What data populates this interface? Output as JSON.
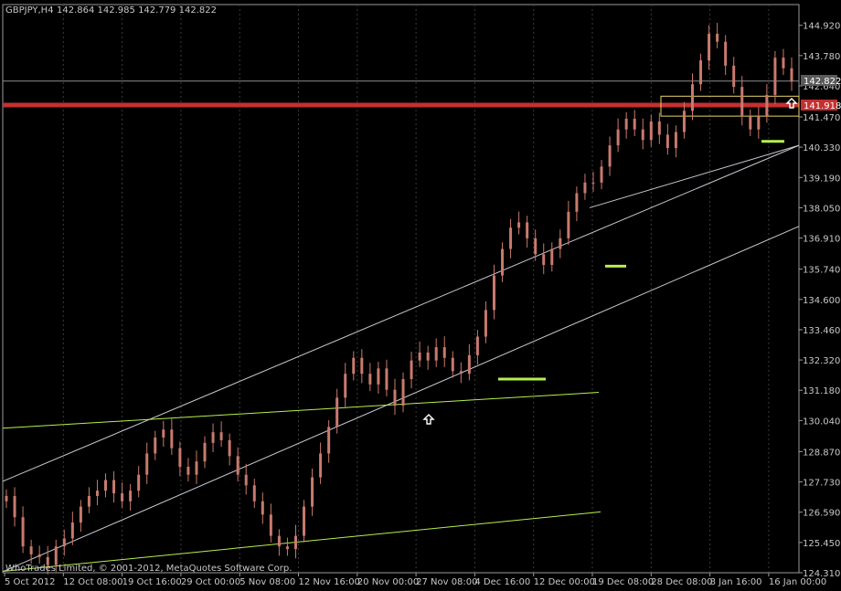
{
  "header": {
    "symbol": "GBPJPY,H4",
    "ohlc": "142.864 142.985 142.779 142.822"
  },
  "copyright": "WhoTrades Limited, © 2001-2012, MetaQuotes Software Corp.",
  "colors": {
    "background": "#000000",
    "grid": "#3a3a3a",
    "axis": "#9a9a9a",
    "candle": "#c87a6e",
    "resistance": "#c43030",
    "price_line": "#8c8c8c",
    "green_lines": "#b6f04e",
    "white_lines": "#c8c8d2",
    "yellow_box": "#e8d26a"
  },
  "chart_data": {
    "type": "candlestick",
    "title": "GBPJPY,H4",
    "y_ticks": [
      "144.920",
      "143.780",
      "142.640",
      "141.470",
      "140.330",
      "139.190",
      "138.050",
      "136.910",
      "135.740",
      "134.600",
      "133.460",
      "132.320",
      "131.180",
      "130.040",
      "128.870",
      "127.730",
      "126.590",
      "125.450",
      "124.310"
    ],
    "x_ticks": [
      "5 Oct 2012",
      "12 Oct 08:00",
      "19 Oct 16:00",
      "29 Oct 00:00",
      "5 Nov 08:00",
      "12 Nov 16:00",
      "20 Nov 00:00",
      "27 Nov 08:00",
      "4 Dec 16:00",
      "12 Dec 00:00",
      "19 Dec 08:00",
      "28 Dec 08:00",
      "8 Jan 16:00",
      "16 Jan 00:00"
    ],
    "ylim": [
      124.31,
      145.7
    ],
    "close_series": [
      127.2,
      126.4,
      125.3,
      125.0,
      124.9,
      124.6,
      125.3,
      125.6,
      126.2,
      126.8,
      127.2,
      127.4,
      127.8,
      127.3,
      127.0,
      127.4,
      128.0,
      128.8,
      129.4,
      129.7,
      129.0,
      128.3,
      128.0,
      128.5,
      129.2,
      129.6,
      129.3,
      128.7,
      128.0,
      127.6,
      127.0,
      126.5,
      125.7,
      125.3,
      125.2,
      125.7,
      126.8,
      127.9,
      128.8,
      129.8,
      130.9,
      131.8,
      132.4,
      131.8,
      131.4,
      132.0,
      131.2,
      130.6,
      131.6,
      132.3,
      132.6,
      132.3,
      132.8,
      132.4,
      131.9,
      131.8,
      132.5,
      133.2,
      134.2,
      135.5,
      136.5,
      137.3,
      137.5,
      136.9,
      136.3,
      135.9,
      136.5,
      136.9,
      137.9,
      138.6,
      139.0,
      139.0,
      139.6,
      140.4,
      141.0,
      141.4,
      141.0,
      140.6,
      141.3,
      140.8,
      140.3,
      140.9,
      141.7,
      142.7,
      143.6,
      144.6,
      144.3,
      143.4,
      142.6,
      141.5,
      141.0,
      141.5,
      142.3,
      143.7,
      143.3,
      142.8
    ],
    "current_price": "142.822",
    "resistance_level": "141.918"
  }
}
